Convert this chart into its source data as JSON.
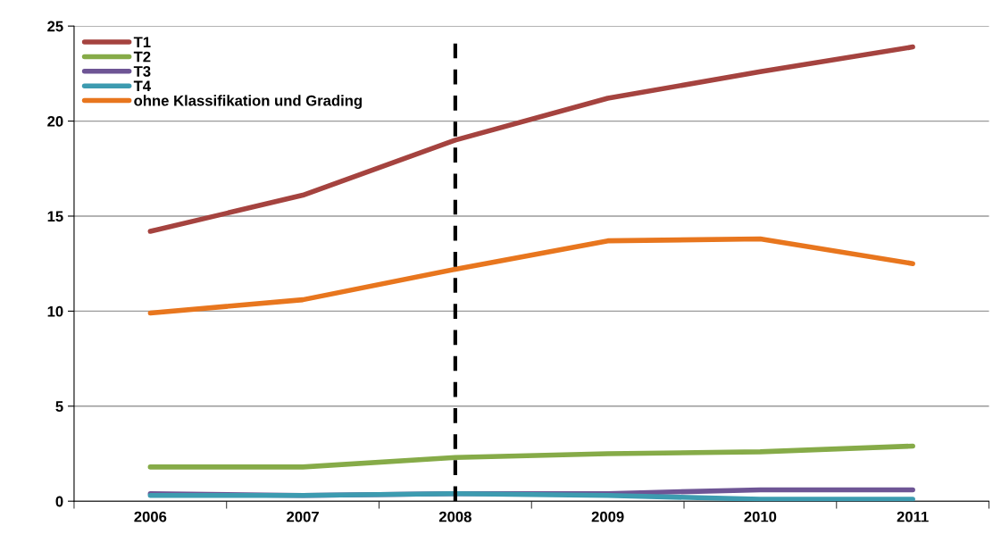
{
  "chart_data": {
    "type": "line",
    "categories": [
      "2006",
      "2007",
      "2008",
      "2009",
      "2010",
      "2011"
    ],
    "series": [
      {
        "name": "T1",
        "color": "#a5433f",
        "values": [
          14.2,
          16.1,
          19.0,
          21.2,
          22.6,
          23.9
        ]
      },
      {
        "name": "T2",
        "color": "#86ab48",
        "values": [
          1.8,
          1.8,
          2.3,
          2.5,
          2.6,
          2.9
        ]
      },
      {
        "name": "T3",
        "color": "#6e5595",
        "values": [
          0.4,
          0.3,
          0.4,
          0.4,
          0.6,
          0.6
        ]
      },
      {
        "name": "T4",
        "color": "#3d9bb0",
        "values": [
          0.3,
          0.3,
          0.4,
          0.3,
          0.1,
          0.1
        ]
      },
      {
        "name": "ohne Klassifikation und Grading",
        "color": "#e8761e",
        "values": [
          9.9,
          10.6,
          12.2,
          13.7,
          13.8,
          12.5
        ]
      }
    ],
    "ylim": [
      0,
      25
    ],
    "yticks": [
      0,
      5,
      10,
      15,
      20,
      25
    ],
    "grid": "y",
    "legend": "top left",
    "marker": "none",
    "line_style": "solid",
    "ref_lines": [
      {
        "axis": "x",
        "value": "2008",
        "color": "#000000",
        "line_style": "dashed"
      }
    ]
  }
}
